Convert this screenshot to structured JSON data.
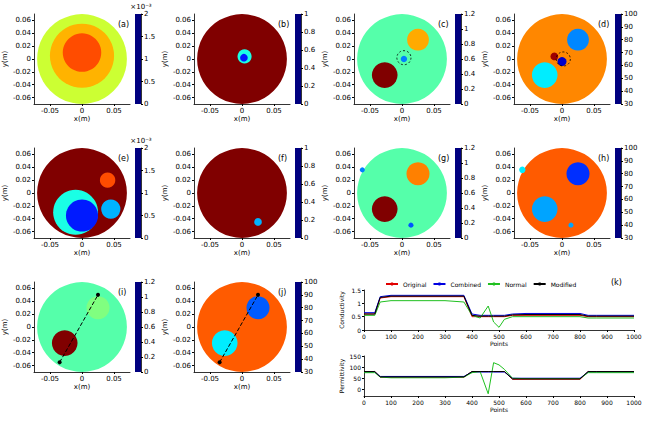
{
  "chart_data": [
    {
      "type": "heatmap",
      "panel": "(a)",
      "x_label": "x(m)",
      "y_label": "y(m)",
      "xlim": [
        -0.075,
        0.075
      ],
      "ylim": [
        -0.07,
        0.07
      ],
      "xticks": [
        -0.05,
        0,
        0.05
      ],
      "yticks": [
        -0.06,
        -0.04,
        -0.02,
        0,
        0.02,
        0.04,
        0.06
      ],
      "colorbar": {
        "lim": [
          0,
          2
        ],
        "ticks": [
          0,
          0.5,
          1,
          1.5,
          2
        ],
        "label": "×10⁻³"
      },
      "regions": [
        {
          "x": 0,
          "y": 0,
          "r": 0.07,
          "value": 1.15
        },
        {
          "x": 0,
          "y": 0.005,
          "r": 0.05,
          "value": 1.4
        },
        {
          "x": 0,
          "y": 0.01,
          "r": 0.03,
          "value": 1.6
        }
      ]
    },
    {
      "type": "heatmap",
      "panel": "(b)",
      "x_label": "x(m)",
      "y_label": "y(m)",
      "xlim": [
        -0.075,
        0.075
      ],
      "ylim": [
        -0.07,
        0.07
      ],
      "xticks": [
        -0.05,
        0,
        0.05
      ],
      "yticks": [
        -0.06,
        -0.04,
        -0.02,
        0,
        0.02,
        0.04,
        0.06
      ],
      "colorbar": {
        "lim": [
          0,
          1
        ],
        "ticks": [
          0,
          0.2,
          0.4,
          0.6,
          0.8,
          1
        ]
      },
      "regions": [
        {
          "x": 0,
          "y": 0,
          "r": 0.07,
          "value": 1
        },
        {
          "x": 0.004,
          "y": 0.004,
          "r": 0.011,
          "value": 0.4
        },
        {
          "x": 0.003,
          "y": 0.002,
          "r": 0.006,
          "value": 0.15
        }
      ]
    },
    {
      "type": "heatmap",
      "panel": "(c)",
      "x_label": "x(m)",
      "y_label": "y(m)",
      "xlim": [
        -0.075,
        0.075
      ],
      "ylim": [
        -0.07,
        0.07
      ],
      "xticks": [
        -0.05,
        0,
        0.05
      ],
      "yticks": [
        -0.06,
        -0.04,
        -0.02,
        0,
        0.02,
        0.04,
        0.06
      ],
      "colorbar": {
        "lim": [
          0,
          1.2
        ],
        "ticks": [
          0,
          0.2,
          0.4,
          0.6,
          0.8,
          1,
          1.2
        ]
      },
      "regions": [
        {
          "x": 0,
          "y": 0,
          "r": 0.07,
          "value": 0.55
        },
        {
          "x": -0.027,
          "y": -0.025,
          "r": 0.02,
          "value": 1.2
        },
        {
          "x": 0.025,
          "y": 0.03,
          "r": 0.017,
          "value": 0.85
        },
        {
          "x": 0.003,
          "y": 0,
          "r": 0.005,
          "value": 0.3
        }
      ],
      "outlines": [
        {
          "x": 0.003,
          "y": 0.002,
          "r": 0.011
        }
      ]
    },
    {
      "type": "heatmap",
      "panel": "(d)",
      "x_label": "x(m)",
      "y_label": "y(m)",
      "xlim": [
        -0.075,
        0.075
      ],
      "ylim": [
        -0.07,
        0.07
      ],
      "xticks": [
        -0.05,
        0,
        0.05
      ],
      "yticks": [
        -0.06,
        -0.04,
        -0.02,
        0,
        0.02,
        0.04,
        0.06
      ],
      "colorbar": {
        "lim": [
          30,
          100
        ],
        "ticks": [
          30,
          40,
          50,
          60,
          70,
          80,
          90,
          100
        ]
      },
      "regions": [
        {
          "x": 0,
          "y": 0,
          "r": 0.07,
          "value": 82
        },
        {
          "x": -0.027,
          "y": -0.025,
          "r": 0.02,
          "value": 55
        },
        {
          "x": 0.025,
          "y": 0.03,
          "r": 0.017,
          "value": 48
        },
        {
          "x": 0,
          "y": -0.004,
          "r": 0.007,
          "value": 35
        },
        {
          "x": -0.012,
          "y": 0.004,
          "r": 0.006,
          "value": 98
        }
      ],
      "outlines": [
        {
          "x": 0.002,
          "y": 0,
          "r": 0.011
        }
      ]
    },
    {
      "type": "heatmap",
      "panel": "(e)",
      "x_label": "x(m)",
      "y_label": "y(m)",
      "xlim": [
        -0.075,
        0.075
      ],
      "ylim": [
        -0.07,
        0.07
      ],
      "xticks": [
        -0.05,
        0,
        0.05
      ],
      "yticks": [
        -0.06,
        -0.04,
        -0.02,
        0,
        0.02,
        0.04,
        0.06
      ],
      "colorbar": {
        "lim": [
          0,
          2
        ],
        "ticks": [
          0,
          0.5,
          1,
          1.5,
          2
        ],
        "label": "×10⁻³"
      },
      "regions": [
        {
          "x": 0,
          "y": 0,
          "r": 0.07,
          "value": 2
        },
        {
          "x": -0.01,
          "y": -0.03,
          "r": 0.035,
          "value": 0.8
        },
        {
          "x": 0,
          "y": -0.035,
          "r": 0.025,
          "value": 0.3
        },
        {
          "x": 0.045,
          "y": -0.025,
          "r": 0.015,
          "value": 0.6
        },
        {
          "x": 0.04,
          "y": 0.02,
          "r": 0.012,
          "value": 1.6
        }
      ]
    },
    {
      "type": "heatmap",
      "panel": "(f)",
      "x_label": "x(m)",
      "y_label": "y(m)",
      "xlim": [
        -0.075,
        0.075
      ],
      "ylim": [
        -0.07,
        0.07
      ],
      "xticks": [
        -0.05,
        0,
        0.05
      ],
      "yticks": [
        -0.06,
        -0.04,
        -0.02,
        0,
        0.02,
        0.04,
        0.06
      ],
      "colorbar": {
        "lim": [
          0,
          1
        ],
        "ticks": [
          0,
          0.2,
          0.4,
          0.6,
          0.8,
          1
        ]
      },
      "regions": [
        {
          "x": 0,
          "y": 0,
          "r": 0.07,
          "value": 1
        },
        {
          "x": 0.025,
          "y": -0.045,
          "r": 0.006,
          "value": 0.3
        }
      ]
    },
    {
      "type": "heatmap",
      "panel": "(g)",
      "x_label": "x(m)",
      "y_label": "y(m)",
      "xlim": [
        -0.075,
        0.075
      ],
      "ylim": [
        -0.07,
        0.07
      ],
      "xticks": [
        -0.05,
        0,
        0.05
      ],
      "yticks": [
        -0.06,
        -0.04,
        -0.02,
        0,
        0.02,
        0.04,
        0.06
      ],
      "colorbar": {
        "lim": [
          0,
          1.2
        ],
        "ticks": [
          0,
          0.2,
          0.4,
          0.6,
          0.8,
          1,
          1.2
        ]
      },
      "regions": [
        {
          "x": 0,
          "y": 0,
          "r": 0.07,
          "value": 0.55
        },
        {
          "x": -0.027,
          "y": -0.025,
          "r": 0.02,
          "value": 1.2
        },
        {
          "x": 0.025,
          "y": 0.03,
          "r": 0.018,
          "value": 0.9
        },
        {
          "x": 0.014,
          "y": -0.05,
          "r": 0.004,
          "value": 0.25
        },
        {
          "x": -0.062,
          "y": 0.036,
          "r": 0.004,
          "value": 0.3
        }
      ]
    },
    {
      "type": "heatmap",
      "panel": "(h)",
      "x_label": "x(m)",
      "y_label": "y(m)",
      "xlim": [
        -0.075,
        0.075
      ],
      "ylim": [
        -0.07,
        0.07
      ],
      "xticks": [
        -0.05,
        0,
        0.05
      ],
      "yticks": [
        -0.06,
        -0.04,
        -0.02,
        0,
        0.02,
        0.04,
        0.06
      ],
      "colorbar": {
        "lim": [
          30,
          100
        ],
        "ticks": [
          30,
          40,
          50,
          60,
          70,
          80,
          90,
          100
        ]
      },
      "regions": [
        {
          "x": 0,
          "y": 0,
          "r": 0.07,
          "value": 85
        },
        {
          "x": -0.027,
          "y": -0.025,
          "r": 0.02,
          "value": 50
        },
        {
          "x": 0.025,
          "y": 0.03,
          "r": 0.018,
          "value": 42
        },
        {
          "x": 0.014,
          "y": -0.05,
          "r": 0.004,
          "value": 50
        },
        {
          "x": -0.062,
          "y": 0.036,
          "r": 0.005,
          "value": 55
        }
      ]
    },
    {
      "type": "heatmap",
      "panel": "(i)",
      "x_label": "x(m)",
      "y_label": "y(m)",
      "xlim": [
        -0.075,
        0.075
      ],
      "ylim": [
        -0.07,
        0.07
      ],
      "xticks": [
        -0.05,
        0,
        0.05
      ],
      "yticks": [
        -0.06,
        -0.04,
        -0.02,
        0,
        0.02,
        0.04,
        0.06
      ],
      "colorbar": {
        "lim": [
          0,
          1.2
        ],
        "ticks": [
          0,
          0.2,
          0.4,
          0.6,
          0.8,
          1,
          1.2
        ]
      },
      "regions": [
        {
          "x": 0,
          "y": 0,
          "r": 0.07,
          "value": 0.55
        },
        {
          "x": -0.027,
          "y": -0.025,
          "r": 0.02,
          "value": 1.2
        },
        {
          "x": 0.025,
          "y": 0.03,
          "r": 0.018,
          "value": 0.6
        }
      ],
      "profile_line": [
        [
          -0.035,
          -0.055
        ],
        [
          0.025,
          0.05
        ]
      ]
    },
    {
      "type": "heatmap",
      "panel": "(j)",
      "x_label": "x(m)",
      "y_label": "y(m)",
      "xlim": [
        -0.075,
        0.075
      ],
      "ylim": [
        -0.07,
        0.07
      ],
      "xticks": [
        -0.05,
        0,
        0.05
      ],
      "yticks": [
        -0.06,
        -0.04,
        -0.02,
        0,
        0.02,
        0.04,
        0.06
      ],
      "colorbar": {
        "lim": [
          30,
          100
        ],
        "ticks": [
          30,
          40,
          50,
          60,
          70,
          80,
          90,
          100
        ]
      },
      "regions": [
        {
          "x": 0,
          "y": 0,
          "r": 0.07,
          "value": 85
        },
        {
          "x": -0.027,
          "y": -0.025,
          "r": 0.02,
          "value": 55
        },
        {
          "x": 0.025,
          "y": 0.03,
          "r": 0.018,
          "value": 45
        }
      ],
      "profile_line": [
        [
          -0.035,
          -0.055
        ],
        [
          0.025,
          0.05
        ]
      ]
    },
    {
      "type": "line",
      "panel": "(k)",
      "x_label": "Points",
      "y_label": "Conductivity",
      "legend": "top",
      "xlim": [
        0,
        1000
      ],
      "xticks": [
        0,
        100,
        200,
        300,
        400,
        500,
        600,
        700,
        800,
        900,
        1000
      ],
      "ylim": [
        0,
        1.5
      ],
      "yticks": [
        0,
        0.5,
        1,
        1.5
      ],
      "x": [
        0,
        40,
        60,
        100,
        200,
        300,
        370,
        400,
        430,
        460,
        480,
        500,
        520,
        550,
        600,
        700,
        800,
        830,
        860,
        900,
        1000
      ],
      "series": [
        {
          "name": "Original",
          "color": "#e00000",
          "values": [
            0.6,
            0.6,
            1.2,
            1.25,
            1.25,
            1.25,
            1.25,
            0.5,
            0.5,
            0.5,
            0.5,
            0.5,
            0.5,
            0.55,
            0.55,
            0.55,
            0.55,
            0.5,
            0.5,
            0.5,
            0.5
          ]
        },
        {
          "name": "Combined",
          "color": "#0000e0",
          "values": [
            0.65,
            0.65,
            1.25,
            1.3,
            1.3,
            1.3,
            1.3,
            0.6,
            0.55,
            0.55,
            0.55,
            0.55,
            0.55,
            0.6,
            0.62,
            0.62,
            0.62,
            0.55,
            0.55,
            0.55,
            0.55
          ]
        },
        {
          "name": "Normal",
          "color": "#20c020",
          "values": [
            0.55,
            0.55,
            1.05,
            1.1,
            1.1,
            1.1,
            1.05,
            0.55,
            0.45,
            0.9,
            0.3,
            0.1,
            0.4,
            0.5,
            0.5,
            0.5,
            0.5,
            0.45,
            0.45,
            0.45,
            0.45
          ]
        },
        {
          "name": "Modified",
          "color": "#000000",
          "values": [
            0.6,
            0.6,
            1.22,
            1.27,
            1.27,
            1.27,
            1.27,
            0.55,
            0.52,
            0.52,
            0.52,
            0.52,
            0.52,
            0.57,
            0.58,
            0.58,
            0.58,
            0.52,
            0.52,
            0.52,
            0.52
          ]
        }
      ]
    },
    {
      "type": "line",
      "x_label": "Points",
      "y_label": "Permittivity",
      "xlim": [
        0,
        1000
      ],
      "xticks": [
        0,
        100,
        200,
        300,
        400,
        500,
        600,
        700,
        800,
        900,
        1000
      ],
      "ylim": [
        -30,
        150
      ],
      "yticks": [
        0,
        50,
        100,
        150
      ],
      "x": [
        0,
        40,
        60,
        100,
        200,
        300,
        370,
        400,
        430,
        460,
        480,
        500,
        520,
        550,
        600,
        700,
        800,
        830,
        860,
        900,
        1000
      ],
      "series": [
        {
          "name": "Original",
          "color": "#e00000",
          "values": [
            80,
            80,
            55,
            55,
            55,
            55,
            55,
            80,
            80,
            80,
            80,
            80,
            80,
            45,
            45,
            45,
            45,
            80,
            80,
            80,
            80
          ]
        },
        {
          "name": "Combined",
          "color": "#0000e0",
          "values": [
            78,
            78,
            58,
            58,
            58,
            58,
            58,
            78,
            78,
            78,
            78,
            78,
            78,
            50,
            50,
            50,
            50,
            78,
            78,
            78,
            78
          ]
        },
        {
          "name": "Normal",
          "color": "#20c020",
          "values": [
            75,
            75,
            55,
            52,
            52,
            52,
            55,
            75,
            80,
            -20,
            120,
            110,
            90,
            50,
            48,
            48,
            48,
            75,
            75,
            75,
            75
          ]
        },
        {
          "name": "Modified",
          "color": "#000000",
          "values": [
            80,
            80,
            56,
            56,
            56,
            56,
            56,
            80,
            80,
            80,
            80,
            80,
            80,
            47,
            47,
            47,
            47,
            80,
            80,
            80,
            80
          ]
        }
      ]
    }
  ]
}
